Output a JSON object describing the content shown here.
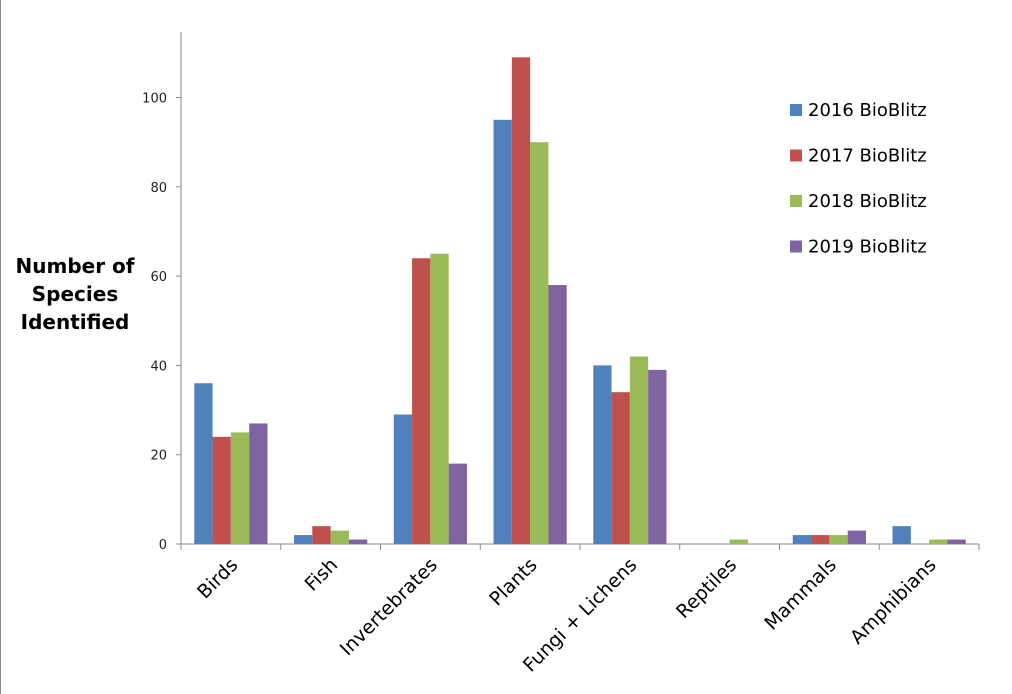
{
  "chart_data": {
    "type": "bar",
    "title": "",
    "xlabel": "",
    "ylabel_lines": [
      "Number of",
      "Species",
      "Identified"
    ],
    "categories": [
      "Birds",
      "Fish",
      "Invertebrates",
      "Plants",
      "Fungi + Lichens",
      "Reptiles",
      "Mammals",
      "Amphibians"
    ],
    "ylim": [
      0,
      115
    ],
    "yticks": [
      0,
      20,
      40,
      60,
      80,
      100
    ],
    "grid": false,
    "legend_position": "top-right",
    "series": [
      {
        "name": "2016 BioBlitz",
        "color": "#4f81bd",
        "values": [
          36,
          2,
          29,
          95,
          40,
          0,
          2,
          4
        ]
      },
      {
        "name": "2017 BioBlitz",
        "color": "#c0504d",
        "values": [
          24,
          4,
          64,
          109,
          34,
          0,
          2,
          0
        ]
      },
      {
        "name": "2018 BioBlitz",
        "color": "#9bbb59",
        "values": [
          25,
          3,
          65,
          90,
          42,
          1,
          2,
          1
        ]
      },
      {
        "name": "2019 BioBlitz",
        "color": "#8064a2",
        "values": [
          27,
          1,
          18,
          58,
          39,
          0,
          3,
          1
        ]
      }
    ]
  }
}
